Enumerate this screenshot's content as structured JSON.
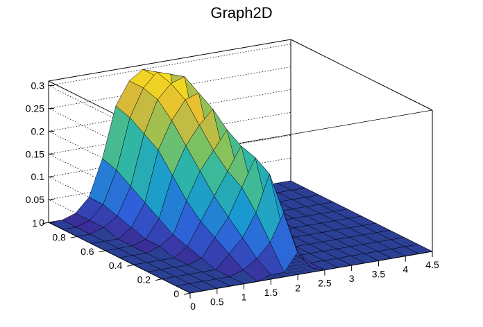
{
  "chart_data": {
    "type": "surface",
    "title": "Graph2D",
    "xlabel": "",
    "ylabel": "",
    "zlabel": "",
    "xlim": [
      0,
      4.5
    ],
    "ylim": [
      0,
      1
    ],
    "zlim": [
      0,
      0.31
    ],
    "x_ticks": [
      "0",
      "0.5",
      "1",
      "1.5",
      "2",
      "2.5",
      "3",
      "3.5",
      "4",
      "4.5"
    ],
    "y_ticks": [
      "0",
      "0.2",
      "0.4",
      "0.6",
      "0.8",
      "1"
    ],
    "z_ticks": [
      "0",
      "0.05",
      "0.1",
      "0.15",
      "0.2",
      "0.25",
      "0.3"
    ],
    "grid": true,
    "colormap": [
      "#3b2a91",
      "#2f5fd9",
      "#1a9ad0",
      "#2fb7a4",
      "#86c35b",
      "#e2b836",
      "#f9e21d"
    ],
    "surface_x": [
      0,
      0.25,
      0.5,
      0.75,
      1.0,
      1.25,
      1.5,
      1.75,
      2.0,
      2.25,
      2.5,
      2.75,
      3.0,
      3.25,
      3.5,
      3.75,
      4.0,
      4.25,
      4.5
    ],
    "surface_y": [
      0,
      0.1,
      0.2,
      0.3,
      0.4,
      0.5,
      0.6,
      0.7,
      0.8,
      0.9,
      1.0
    ],
    "surface_z": [
      [
        0,
        0,
        0,
        0,
        0,
        0,
        0.01,
        0.01,
        0.05,
        0.01,
        0,
        0,
        0,
        0,
        0,
        0,
        0,
        0,
        0
      ],
      [
        0,
        0,
        0,
        0,
        0,
        0.01,
        0.03,
        0.06,
        0.12,
        0.03,
        0,
        0,
        0,
        0,
        0,
        0,
        0,
        0,
        0
      ],
      [
        0,
        0,
        0,
        0,
        0,
        0.03,
        0.06,
        0.11,
        0.19,
        0.06,
        0,
        0,
        0,
        0,
        0,
        0,
        0,
        0,
        0
      ],
      [
        0,
        0,
        0,
        0,
        0.01,
        0.05,
        0.09,
        0.15,
        0.21,
        0.08,
        0,
        0,
        0,
        0,
        0,
        0,
        0,
        0,
        0
      ],
      [
        0,
        0,
        0,
        0,
        0.02,
        0.07,
        0.12,
        0.17,
        0.22,
        0.1,
        0,
        0,
        0,
        0,
        0,
        0,
        0,
        0,
        0
      ],
      [
        0,
        0,
        0,
        0.01,
        0.03,
        0.1,
        0.16,
        0.2,
        0.24,
        0.12,
        0,
        0,
        0,
        0,
        0,
        0,
        0,
        0,
        0
      ],
      [
        0,
        0,
        0,
        0.01,
        0.05,
        0.14,
        0.2,
        0.24,
        0.27,
        0.14,
        0,
        0,
        0,
        0,
        0,
        0,
        0,
        0,
        0
      ],
      [
        0,
        0,
        0,
        0.02,
        0.07,
        0.18,
        0.24,
        0.28,
        0.29,
        0.15,
        0,
        0,
        0,
        0,
        0,
        0,
        0,
        0,
        0
      ],
      [
        0,
        0,
        0.01,
        0.03,
        0.09,
        0.2,
        0.27,
        0.3,
        0.31,
        0.16,
        0,
        0,
        0,
        0,
        0,
        0,
        0,
        0,
        0
      ],
      [
        0,
        0,
        0.01,
        0.04,
        0.11,
        0.22,
        0.28,
        0.31,
        0.3,
        0.16,
        0,
        0,
        0,
        0,
        0,
        0,
        0,
        0,
        0
      ],
      [
        0,
        0,
        0.01,
        0.04,
        0.12,
        0.23,
        0.28,
        0.3,
        0.28,
        0.15,
        0,
        0,
        0,
        0,
        0,
        0,
        0,
        0,
        0
      ]
    ]
  }
}
